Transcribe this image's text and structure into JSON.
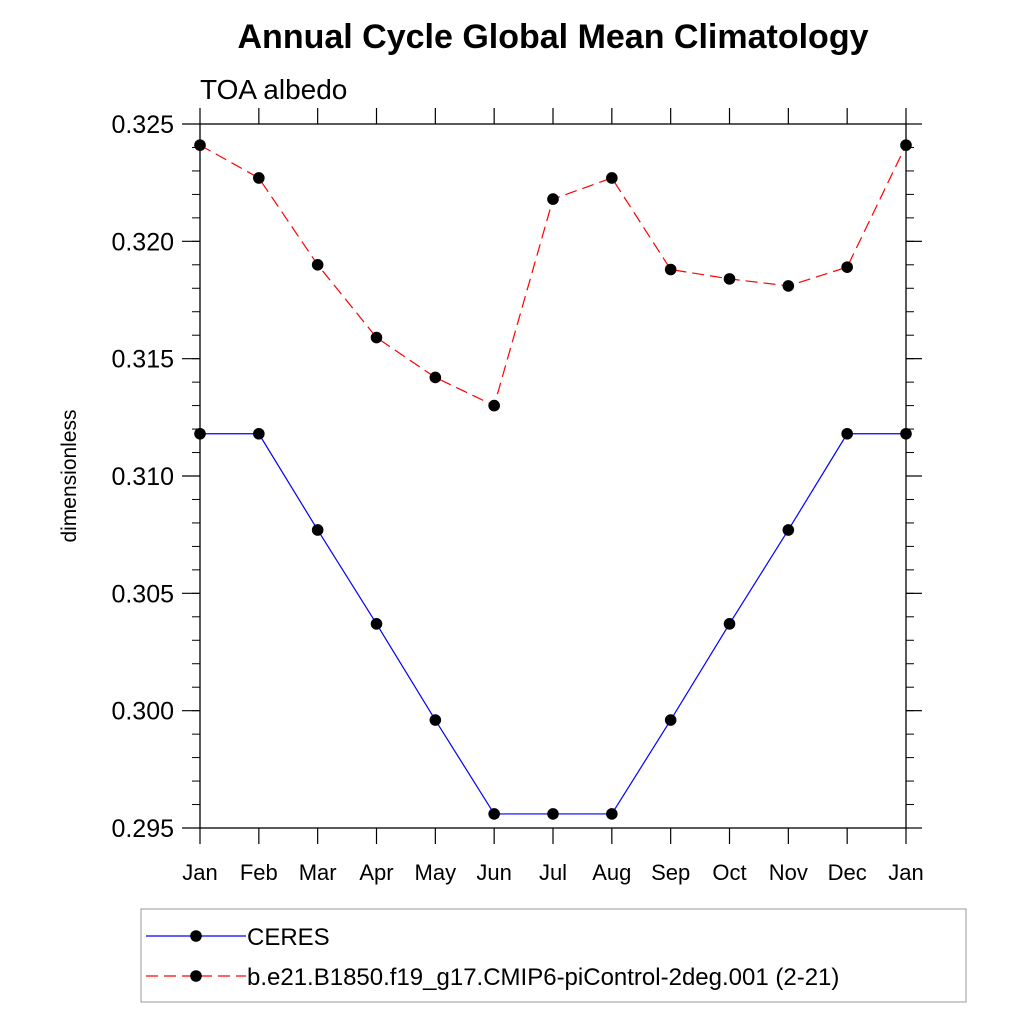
{
  "chart_data": {
    "type": "line",
    "title": "Annual Cycle Global Mean Climatology",
    "subtitle": "TOA albedo",
    "xlabel": "",
    "ylabel": "dimensionless",
    "categories": [
      "Jan",
      "Feb",
      "Mar",
      "Apr",
      "May",
      "Jun",
      "Jul",
      "Aug",
      "Sep",
      "Oct",
      "Nov",
      "Dec",
      "Jan"
    ],
    "ylim": [
      0.295,
      0.325
    ],
    "yticks": [
      "0.295",
      "0.300",
      "0.305",
      "0.310",
      "0.315",
      "0.320",
      "0.325"
    ],
    "grid": false,
    "legend_position": "bottom",
    "series": [
      {
        "name": "CERES",
        "color": "#0000ff",
        "line_style": "solid",
        "values": [
          0.3118,
          0.3118,
          0.3077,
          0.3037,
          0.2996,
          0.2956,
          0.2956,
          0.2956,
          0.2996,
          0.3037,
          0.3077,
          0.3118,
          0.3118
        ]
      },
      {
        "name": "b.e21.B1850.f19_g17.CMIP6-piControl-2deg.001 (2-21)",
        "color": "#ff0000",
        "line_style": "dashed",
        "values": [
          0.3241,
          0.3227,
          0.319,
          0.3159,
          0.3142,
          0.313,
          0.3218,
          0.3227,
          0.3188,
          0.3184,
          0.3181,
          0.3189,
          0.3241
        ]
      }
    ]
  }
}
